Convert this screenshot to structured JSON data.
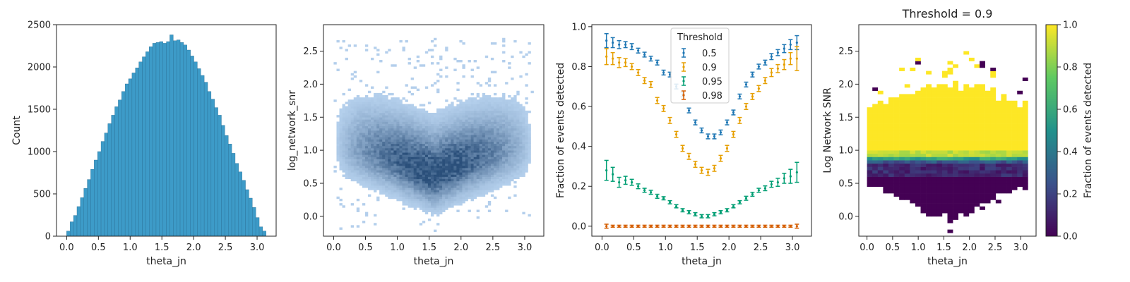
{
  "chart_data": [
    {
      "id": "histogram",
      "type": "bar",
      "xlabel": "theta_jn",
      "ylabel": "Count",
      "xlim": [
        -0.16,
        3.3
      ],
      "ylim": [
        0,
        2500
      ],
      "xticks": [
        "0.0",
        "0.5",
        "1.0",
        "1.5",
        "2.0",
        "2.5",
        "3.0"
      ],
      "yticks": [
        "0",
        "500",
        "1000",
        "1500",
        "2000",
        "2500"
      ],
      "bin_edges": [
        0.0,
        3.1416
      ],
      "values": [
        60,
        170,
        245,
        350,
        455,
        565,
        670,
        790,
        900,
        1000,
        1120,
        1220,
        1330,
        1430,
        1530,
        1610,
        1710,
        1800,
        1860,
        1930,
        1990,
        2060,
        2120,
        2180,
        2240,
        2280,
        2290,
        2300,
        2280,
        2300,
        2380,
        2310,
        2320,
        2290,
        2260,
        2200,
        2130,
        2060,
        1980,
        1900,
        1820,
        1710,
        1620,
        1520,
        1430,
        1310,
        1190,
        1090,
        980,
        860,
        760,
        660,
        550,
        450,
        340,
        220,
        110,
        60
      ],
      "bar_color": "#3d9bc8",
      "grid": false
    },
    {
      "id": "density",
      "type": "heatmap",
      "xlabel": "theta_jn",
      "ylabel": "log_network_snr",
      "xlim": [
        -0.16,
        3.3
      ],
      "ylim": [
        -0.3,
        2.9
      ],
      "xticks": [
        "0.0",
        "0.5",
        "1.0",
        "1.5",
        "2.0",
        "2.5",
        "3.0"
      ],
      "yticks": [
        "0.0",
        "0.5",
        "1.0",
        "1.5",
        "2.0",
        "2.5"
      ],
      "x_range": [
        0.0,
        3.14
      ],
      "y_range": [
        -0.3,
        2.7
      ],
      "n_xbins": 70,
      "n_ybins": 90,
      "color_light": "#bcd7f3",
      "color_dark": "#2a4f7a",
      "grid": false
    },
    {
      "id": "fraction",
      "type": "scatter",
      "xlabel": "theta_jn",
      "ylabel": "Fraction of events detected",
      "xlim": [
        -0.16,
        3.3
      ],
      "ylim": [
        -0.05,
        1.01
      ],
      "xticks": [
        "0.0",
        "0.5",
        "1.0",
        "1.5",
        "2.0",
        "2.5",
        "3.0"
      ],
      "yticks": [
        "0.0",
        "0.2",
        "0.4",
        "0.6",
        "0.8",
        "1.0"
      ],
      "x": [
        0.07,
        0.17,
        0.27,
        0.37,
        0.47,
        0.57,
        0.67,
        0.77,
        0.87,
        0.97,
        1.07,
        1.17,
        1.27,
        1.37,
        1.47,
        1.57,
        1.67,
        1.77,
        1.87,
        1.97,
        2.07,
        2.17,
        2.27,
        2.37,
        2.47,
        2.57,
        2.67,
        2.77,
        2.87,
        2.97,
        3.07
      ],
      "legend_title": "Threshold",
      "legend_position": "upper center",
      "series": [
        {
          "name": "0.5",
          "color": "#1f77b4",
          "values": [
            0.93,
            0.92,
            0.91,
            0.91,
            0.9,
            0.88,
            0.86,
            0.84,
            0.82,
            0.77,
            0.76,
            0.7,
            0.66,
            0.58,
            0.52,
            0.48,
            0.45,
            0.45,
            0.47,
            0.52,
            0.57,
            0.65,
            0.71,
            0.76,
            0.8,
            0.82,
            0.85,
            0.87,
            0.89,
            0.91,
            0.92
          ],
          "errors": [
            0.035,
            0.025,
            0.02,
            0.015,
            0.015,
            0.012,
            0.012,
            0.012,
            0.012,
            0.012,
            0.012,
            0.012,
            0.012,
            0.012,
            0.012,
            0.012,
            0.012,
            0.012,
            0.012,
            0.012,
            0.012,
            0.012,
            0.012,
            0.012,
            0.012,
            0.012,
            0.015,
            0.015,
            0.02,
            0.025,
            0.035
          ]
        },
        {
          "name": "0.9",
          "color": "#e69f00",
          "values": [
            0.85,
            0.84,
            0.82,
            0.82,
            0.8,
            0.77,
            0.73,
            0.71,
            0.63,
            0.59,
            0.53,
            0.46,
            0.39,
            0.35,
            0.31,
            0.28,
            0.27,
            0.29,
            0.34,
            0.39,
            0.46,
            0.53,
            0.6,
            0.65,
            0.69,
            0.73,
            0.77,
            0.79,
            0.81,
            0.84,
            0.84
          ],
          "errors": [
            0.04,
            0.03,
            0.025,
            0.02,
            0.015,
            0.015,
            0.015,
            0.015,
            0.015,
            0.015,
            0.015,
            0.015,
            0.015,
            0.015,
            0.015,
            0.015,
            0.015,
            0.015,
            0.015,
            0.015,
            0.015,
            0.015,
            0.015,
            0.015,
            0.015,
            0.015,
            0.02,
            0.02,
            0.025,
            0.03,
            0.06
          ]
        },
        {
          "name": "0.95",
          "color": "#009e73",
          "values": [
            0.28,
            0.26,
            0.22,
            0.23,
            0.22,
            0.2,
            0.18,
            0.17,
            0.15,
            0.14,
            0.12,
            0.1,
            0.08,
            0.07,
            0.06,
            0.05,
            0.05,
            0.06,
            0.07,
            0.08,
            0.1,
            0.12,
            0.14,
            0.16,
            0.18,
            0.19,
            0.21,
            0.22,
            0.24,
            0.25,
            0.27
          ],
          "errors": [
            0.05,
            0.035,
            0.025,
            0.02,
            0.015,
            0.012,
            0.01,
            0.01,
            0.01,
            0.008,
            0.008,
            0.008,
            0.008,
            0.008,
            0.008,
            0.008,
            0.008,
            0.008,
            0.008,
            0.008,
            0.008,
            0.008,
            0.01,
            0.01,
            0.01,
            0.012,
            0.015,
            0.02,
            0.025,
            0.035,
            0.05
          ]
        },
        {
          "name": "0.98",
          "color": "#d55e00",
          "values": [
            0.0,
            0.0,
            0.0,
            0.0,
            0.0,
            0.0,
            0.0,
            0.0,
            0.0,
            0.0,
            0.0,
            0.0,
            0.0,
            0.0,
            0.0,
            0.0,
            0.0,
            0.0,
            0.0,
            0.0,
            0.0,
            0.0,
            0.0,
            0.0,
            0.0,
            0.0,
            0.0,
            0.0,
            0.0,
            0.0,
            0.0
          ],
          "errors": [
            0.01,
            0.005,
            0.005,
            0.005,
            0.005,
            0.005,
            0.005,
            0.005,
            0.005,
            0.005,
            0.005,
            0.005,
            0.005,
            0.005,
            0.005,
            0.005,
            0.005,
            0.005,
            0.005,
            0.005,
            0.005,
            0.005,
            0.005,
            0.005,
            0.005,
            0.005,
            0.005,
            0.005,
            0.005,
            0.005,
            0.01
          ]
        }
      ],
      "grid": false
    },
    {
      "id": "detection-map",
      "type": "heatmap",
      "title": "Threshold = 0.9",
      "xlabel": "theta_jn",
      "ylabel": "Log Network SNR",
      "xlim": [
        -0.16,
        3.3
      ],
      "ylim": [
        -0.3,
        2.9
      ],
      "xticks": [
        "0.0",
        "0.5",
        "1.0",
        "1.5",
        "2.0",
        "2.5",
        "3.0"
      ],
      "yticks": [
        "0.0",
        "0.5",
        "1.0",
        "1.5",
        "2.0",
        "2.5"
      ],
      "x_range": [
        0.0,
        3.14
      ],
      "y_range": [
        -0.3,
        2.7
      ],
      "n_xbins": 30,
      "n_ybins": 60,
      "colormap": "viridis",
      "colorbar": {
        "label": "Fraction of events detected",
        "range": [
          0.0,
          1.0
        ],
        "ticks": [
          "0.0",
          "0.2",
          "0.4",
          "0.6",
          "0.8",
          "1.0"
        ]
      },
      "grid": false
    }
  ]
}
